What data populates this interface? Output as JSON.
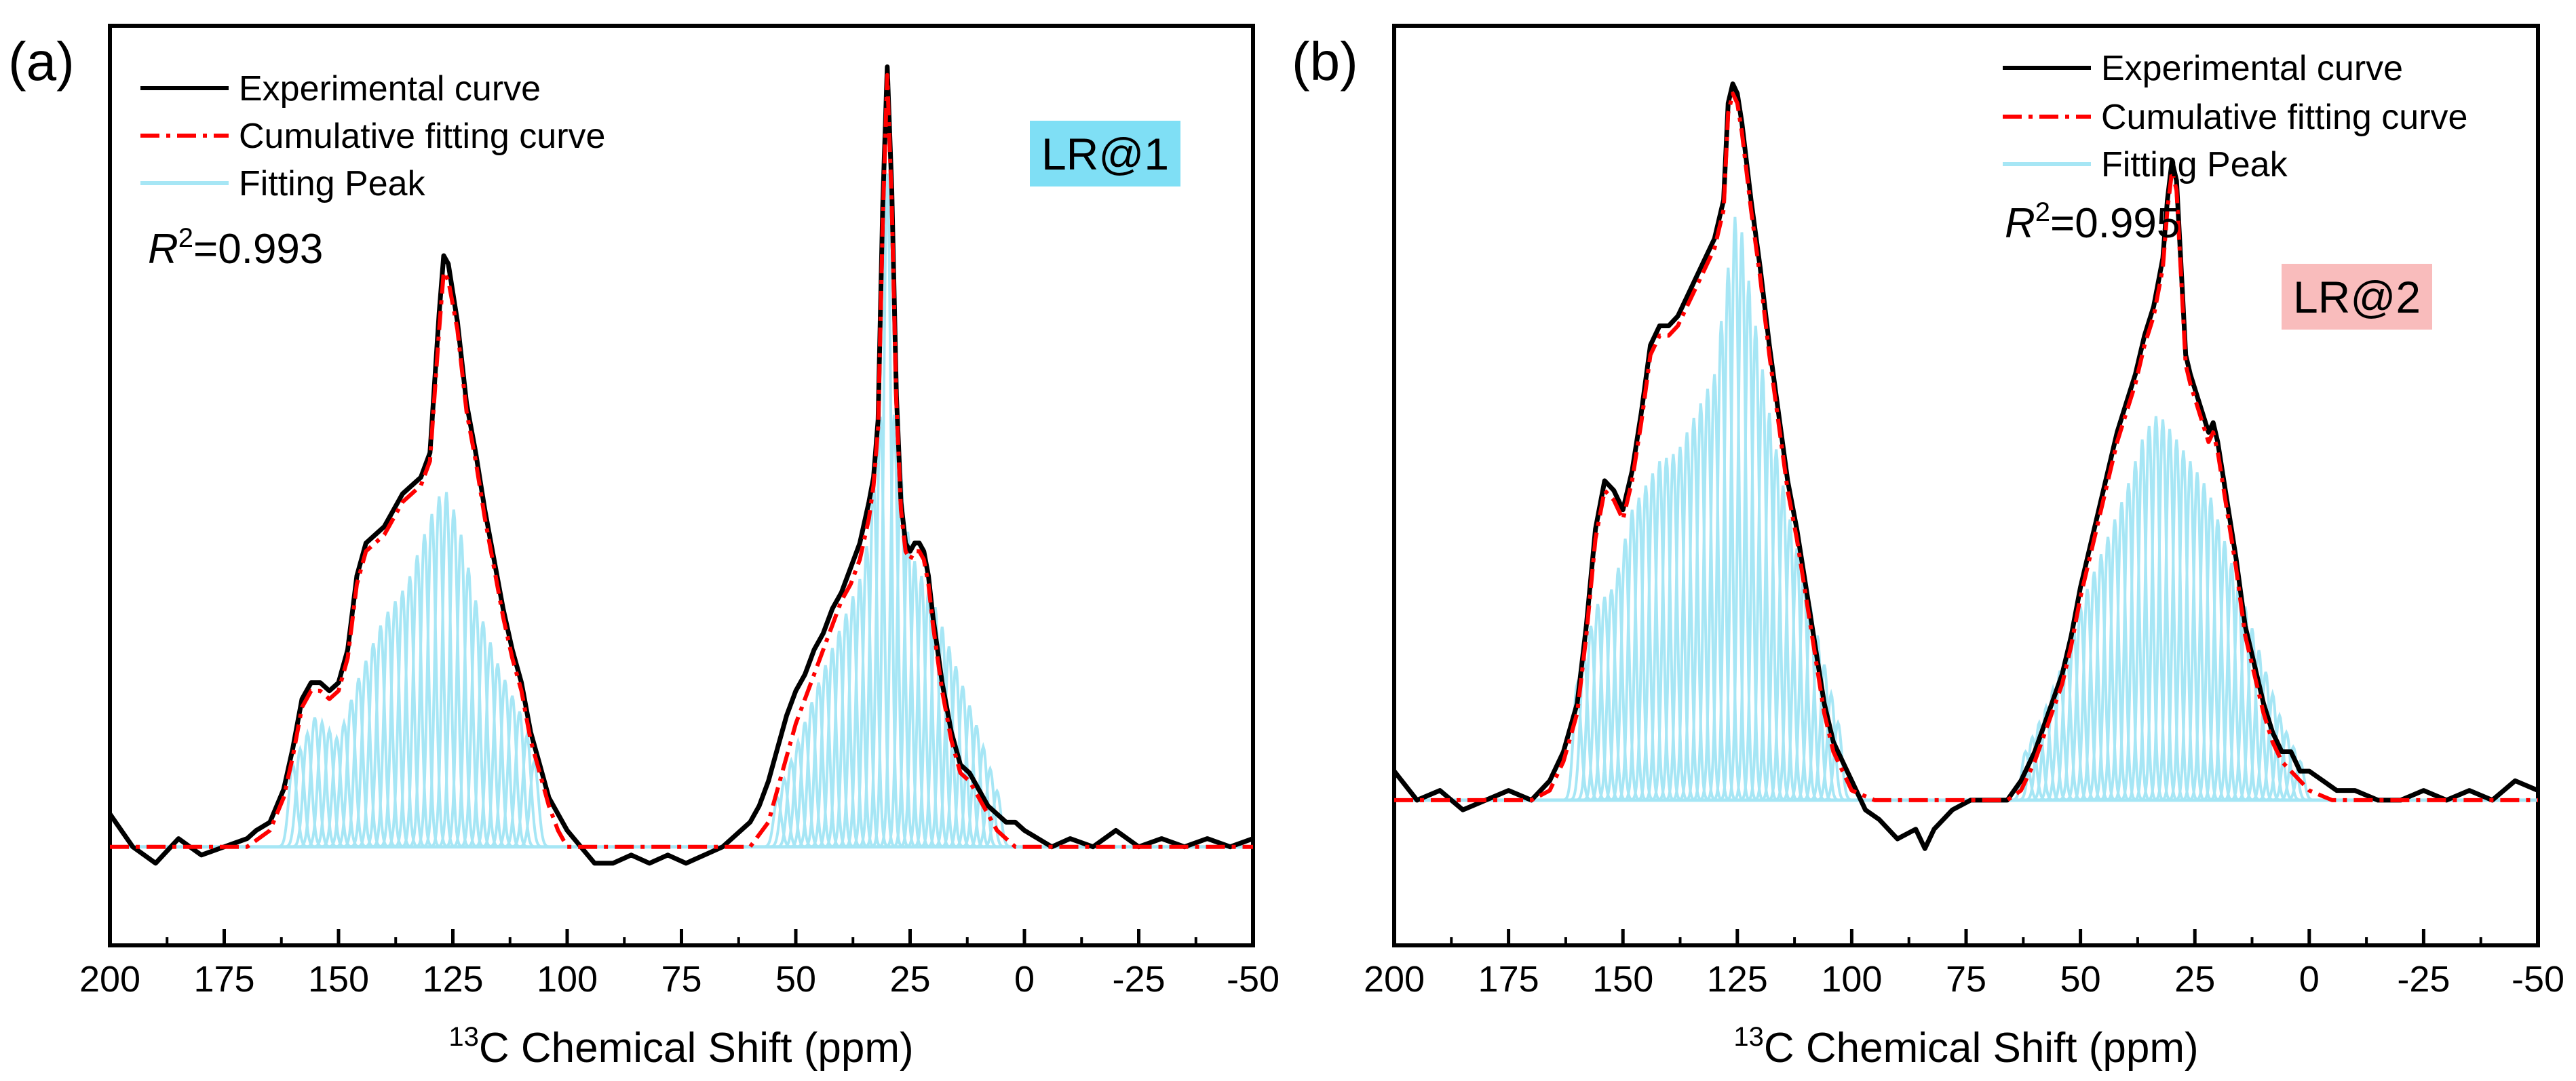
{
  "chart_data": [
    {
      "type": "line",
      "panel_label": "(a)",
      "sample_label": "LR@1",
      "sample_label_color": "#7fdff5",
      "r2_symbol": "R",
      "r2_sup": "2",
      "r2_value": "=0.993",
      "xlabel_sup": "13",
      "xlabel_main": "C Chemical Shift (ppm)",
      "xlim": [
        200,
        -50
      ],
      "ylim": [
        -0.12,
        1.0
      ],
      "xticks": [
        "200",
        "175",
        "150",
        "125",
        "100",
        "75",
        "50",
        "25",
        "0",
        "-25",
        "-50"
      ],
      "xtick_values": [
        200,
        175,
        150,
        125,
        100,
        75,
        50,
        25,
        0,
        -25,
        -50
      ],
      "legend": [
        "Experimental curve",
        "Cumulative fitting curve",
        "Fitting Peak"
      ],
      "legend_position": "top-left",
      "colors": {
        "experimental": "#000000",
        "fit": "#ff0000",
        "peak": "#a6e6f5"
      },
      "peak_bands": [
        {
          "start": 160,
          "end": 105,
          "spacing": 1.6,
          "baseline_amp": 0.05,
          "env": [
            [
              160,
              0.1
            ],
            [
              155,
              0.16
            ],
            [
              150,
              0.13
            ],
            [
              146,
              0.2
            ],
            [
              140,
              0.28
            ],
            [
              135,
              0.32
            ],
            [
              130,
              0.4
            ],
            [
              127,
              0.44
            ],
            [
              124,
              0.4
            ],
            [
              120,
              0.3
            ],
            [
              115,
              0.22
            ],
            [
              110,
              0.16
            ],
            [
              106,
              0.08
            ]
          ]
        },
        {
          "start": 54,
          "end": 5,
          "spacing": 1.5,
          "baseline_amp": 0.05,
          "env": [
            [
              54,
              0.06
            ],
            [
              50,
              0.12
            ],
            [
              45,
              0.2
            ],
            [
              40,
              0.27
            ],
            [
              35,
              0.34
            ],
            [
              31,
              0.55
            ],
            [
              30,
              0.82
            ],
            [
              29,
              0.55
            ],
            [
              25,
              0.36
            ],
            [
              20,
              0.3
            ],
            [
              15,
              0.22
            ],
            [
              10,
              0.14
            ],
            [
              5,
              0.05
            ]
          ]
        }
      ],
      "series": [
        {
          "name": "Experimental curve",
          "x": [
            200,
            195,
            190,
            185,
            180,
            175,
            170,
            168,
            165,
            162,
            160,
            158,
            156,
            154,
            152,
            150,
            148,
            146,
            144,
            142,
            140,
            138,
            136,
            134,
            132,
            130,
            128,
            127,
            126,
            124,
            122,
            120,
            118,
            116,
            114,
            112,
            110,
            108,
            106,
            104,
            102,
            100,
            97,
            94,
            90,
            86,
            82,
            78,
            74,
            70,
            66,
            62,
            60,
            58,
            56,
            54,
            52,
            50,
            48,
            46,
            44,
            42,
            40,
            38,
            36,
            34,
            33,
            32,
            31,
            30,
            29,
            28,
            27,
            26,
            25,
            24,
            23,
            22,
            21,
            20,
            18,
            16,
            14,
            12,
            10,
            8,
            6,
            4,
            2,
            0,
            -3,
            -6,
            -10,
            -15,
            -20,
            -25,
            -30,
            -35,
            -40,
            -45,
            -50
          ],
          "y": [
            0.04,
            0.0,
            -0.02,
            0.01,
            -0.01,
            0.0,
            0.01,
            0.02,
            0.03,
            0.07,
            0.12,
            0.18,
            0.2,
            0.2,
            0.19,
            0.2,
            0.24,
            0.33,
            0.37,
            0.38,
            0.39,
            0.41,
            0.43,
            0.44,
            0.45,
            0.48,
            0.65,
            0.72,
            0.71,
            0.64,
            0.54,
            0.48,
            0.41,
            0.35,
            0.29,
            0.24,
            0.2,
            0.14,
            0.1,
            0.06,
            0.04,
            0.02,
            0.0,
            -0.02,
            -0.02,
            -0.01,
            -0.02,
            -0.01,
            -0.02,
            -0.01,
            0.0,
            0.02,
            0.03,
            0.05,
            0.08,
            0.12,
            0.16,
            0.19,
            0.21,
            0.24,
            0.26,
            0.29,
            0.31,
            0.34,
            0.37,
            0.42,
            0.45,
            0.52,
            0.78,
            0.95,
            0.8,
            0.55,
            0.42,
            0.37,
            0.36,
            0.37,
            0.37,
            0.36,
            0.33,
            0.28,
            0.2,
            0.14,
            0.1,
            0.09,
            0.07,
            0.05,
            0.04,
            0.03,
            0.03,
            0.02,
            0.01,
            0.0,
            0.01,
            0.0,
            0.02,
            0.0,
            0.01,
            0.0,
            0.01,
            0.0,
            0.01
          ]
        },
        {
          "name": "Cumulative fitting curve",
          "x": [
            200,
            170,
            165,
            162,
            160,
            158,
            156,
            154,
            152,
            150,
            148,
            146,
            144,
            142,
            140,
            138,
            136,
            134,
            132,
            130,
            128,
            127,
            126,
            124,
            122,
            120,
            118,
            116,
            114,
            112,
            110,
            108,
            106,
            104,
            102,
            100,
            95,
            60,
            56,
            54,
            52,
            50,
            48,
            46,
            44,
            42,
            40,
            38,
            36,
            34,
            33,
            32,
            31,
            30,
            29,
            28,
            27,
            26,
            25,
            24,
            23,
            22,
            21,
            20,
            18,
            16,
            14,
            12,
            10,
            8,
            6,
            4,
            2,
            0,
            -5,
            -50
          ],
          "y": [
            0.0,
            0.0,
            0.02,
            0.06,
            0.11,
            0.17,
            0.19,
            0.19,
            0.18,
            0.19,
            0.23,
            0.32,
            0.36,
            0.37,
            0.38,
            0.4,
            0.42,
            0.43,
            0.44,
            0.47,
            0.63,
            0.7,
            0.69,
            0.63,
            0.53,
            0.47,
            0.4,
            0.34,
            0.28,
            0.23,
            0.19,
            0.13,
            0.09,
            0.05,
            0.02,
            0.0,
            0.0,
            0.0,
            0.03,
            0.07,
            0.11,
            0.15,
            0.18,
            0.21,
            0.24,
            0.27,
            0.3,
            0.32,
            0.35,
            0.4,
            0.44,
            0.51,
            0.76,
            0.94,
            0.78,
            0.54,
            0.41,
            0.36,
            0.35,
            0.36,
            0.36,
            0.35,
            0.32,
            0.27,
            0.19,
            0.13,
            0.09,
            0.08,
            0.06,
            0.04,
            0.02,
            0.01,
            0.0,
            0.0,
            0.0,
            0.0
          ]
        }
      ]
    },
    {
      "type": "line",
      "panel_label": "(b)",
      "sample_label": "LR@2",
      "sample_label_color": "#f9bcbc",
      "r2_symbol": "R",
      "r2_sup": "2",
      "r2_value": "=0.995",
      "xlabel_sup": "13",
      "xlabel_main": "C Chemical Shift (ppm)",
      "xlim": [
        200,
        -50
      ],
      "ylim": [
        -0.15,
        0.8
      ],
      "xticks": [
        "200",
        "175",
        "150",
        "125",
        "100",
        "75",
        "50",
        "25",
        "0",
        "-25",
        "-50"
      ],
      "xtick_values": [
        200,
        175,
        150,
        125,
        100,
        75,
        50,
        25,
        0,
        -25,
        -50
      ],
      "legend": [
        "Experimental curve",
        "Cumulative fitting curve",
        "Fitting Peak"
      ],
      "legend_position": "top-right",
      "colors": {
        "experimental": "#000000",
        "fit": "#ff0000",
        "peak": "#a6e6f5"
      },
      "peak_bands": [
        {
          "start": 160,
          "end": 102,
          "spacing": 1.5,
          "baseline_amp": 0.05,
          "env": [
            [
              160,
              0.12
            ],
            [
              156,
              0.2
            ],
            [
              152,
              0.22
            ],
            [
              148,
              0.3
            ],
            [
              142,
              0.35
            ],
            [
              138,
              0.36
            ],
            [
              134,
              0.4
            ],
            [
              130,
              0.44
            ],
            [
              127,
              0.55
            ],
            [
              125,
              0.62
            ],
            [
              122,
              0.52
            ],
            [
              118,
              0.4
            ],
            [
              114,
              0.3
            ],
            [
              110,
              0.22
            ],
            [
              106,
              0.14
            ],
            [
              102,
              0.06
            ]
          ]
        },
        {
          "start": 62,
          "end": 2,
          "spacing": 1.5,
          "baseline_amp": 0.05,
          "env": [
            [
              62,
              0.05
            ],
            [
              58,
              0.09
            ],
            [
              54,
              0.14
            ],
            [
              50,
              0.2
            ],
            [
              45,
              0.26
            ],
            [
              40,
              0.32
            ],
            [
              36,
              0.38
            ],
            [
              33,
              0.4
            ],
            [
              30,
              0.38
            ],
            [
              26,
              0.35
            ],
            [
              22,
              0.32
            ],
            [
              18,
              0.26
            ],
            [
              14,
              0.2
            ],
            [
              10,
              0.14
            ],
            [
              6,
              0.08
            ],
            [
              2,
              0.04
            ]
          ]
        }
      ],
      "series": [
        {
          "name": "Experimental curve",
          "x": [
            200,
            195,
            190,
            185,
            180,
            175,
            170,
            166,
            163,
            160,
            158,
            156,
            154,
            152,
            150,
            148,
            146,
            144,
            142,
            140,
            138,
            136,
            134,
            132,
            130,
            128,
            127,
            126,
            125,
            124,
            122,
            120,
            118,
            116,
            114,
            112,
            110,
            108,
            106,
            104,
            102,
            100,
            97,
            94,
            90,
            86,
            84,
            82,
            78,
            74,
            70,
            66,
            63,
            60,
            57,
            54,
            52,
            50,
            48,
            46,
            44,
            42,
            40,
            38,
            36,
            34,
            32,
            31,
            30,
            29,
            28,
            27,
            26,
            24,
            22,
            21,
            20,
            18,
            16,
            14,
            12,
            10,
            8,
            6,
            4,
            2,
            0,
            -3,
            -6,
            -10,
            -15,
            -20,
            -25,
            -30,
            -35,
            -40,
            -45,
            -50
          ],
          "y": [
            0.03,
            0.0,
            0.01,
            -0.01,
            0.0,
            0.01,
            0.0,
            0.02,
            0.05,
            0.1,
            0.18,
            0.28,
            0.33,
            0.32,
            0.3,
            0.34,
            0.4,
            0.47,
            0.49,
            0.49,
            0.5,
            0.52,
            0.54,
            0.56,
            0.58,
            0.62,
            0.72,
            0.74,
            0.73,
            0.7,
            0.62,
            0.55,
            0.47,
            0.4,
            0.33,
            0.28,
            0.22,
            0.16,
            0.1,
            0.06,
            0.04,
            0.02,
            -0.01,
            -0.02,
            -0.04,
            -0.03,
            -0.05,
            -0.03,
            -0.01,
            0.0,
            0.0,
            0.0,
            0.02,
            0.05,
            0.09,
            0.13,
            0.17,
            0.22,
            0.26,
            0.3,
            0.34,
            0.38,
            0.41,
            0.44,
            0.48,
            0.51,
            0.56,
            0.62,
            0.66,
            0.64,
            0.55,
            0.46,
            0.44,
            0.41,
            0.38,
            0.39,
            0.37,
            0.31,
            0.25,
            0.18,
            0.14,
            0.1,
            0.07,
            0.05,
            0.05,
            0.03,
            0.03,
            0.02,
            0.01,
            0.01,
            0.0,
            0.0,
            0.01,
            0.0,
            0.01,
            0.0,
            0.02,
            0.01
          ]
        },
        {
          "name": "Cumulative fitting curve",
          "x": [
            200,
            170,
            166,
            163,
            160,
            158,
            156,
            154,
            152,
            150,
            148,
            146,
            144,
            142,
            140,
            138,
            136,
            134,
            132,
            130,
            128,
            127,
            126,
            125,
            124,
            122,
            120,
            118,
            116,
            114,
            112,
            110,
            108,
            106,
            104,
            102,
            100,
            95,
            66,
            63,
            60,
            57,
            54,
            52,
            50,
            48,
            46,
            44,
            42,
            40,
            38,
            36,
            34,
            32,
            31,
            30,
            29,
            28,
            27,
            26,
            24,
            22,
            21,
            20,
            18,
            16,
            14,
            12,
            10,
            8,
            6,
            4,
            2,
            0,
            -5,
            -50
          ],
          "y": [
            0.0,
            0.0,
            0.01,
            0.04,
            0.09,
            0.17,
            0.27,
            0.32,
            0.31,
            0.29,
            0.33,
            0.39,
            0.46,
            0.48,
            0.48,
            0.49,
            0.51,
            0.53,
            0.55,
            0.57,
            0.61,
            0.71,
            0.73,
            0.72,
            0.69,
            0.61,
            0.54,
            0.46,
            0.39,
            0.32,
            0.27,
            0.21,
            0.15,
            0.09,
            0.05,
            0.03,
            0.01,
            0.0,
            0.0,
            0.01,
            0.04,
            0.08,
            0.12,
            0.16,
            0.21,
            0.25,
            0.29,
            0.33,
            0.37,
            0.4,
            0.43,
            0.47,
            0.5,
            0.55,
            0.61,
            0.65,
            0.63,
            0.54,
            0.45,
            0.43,
            0.4,
            0.37,
            0.38,
            0.36,
            0.3,
            0.24,
            0.17,
            0.13,
            0.09,
            0.06,
            0.04,
            0.03,
            0.02,
            0.01,
            0.0,
            0.0
          ]
        }
      ]
    }
  ]
}
